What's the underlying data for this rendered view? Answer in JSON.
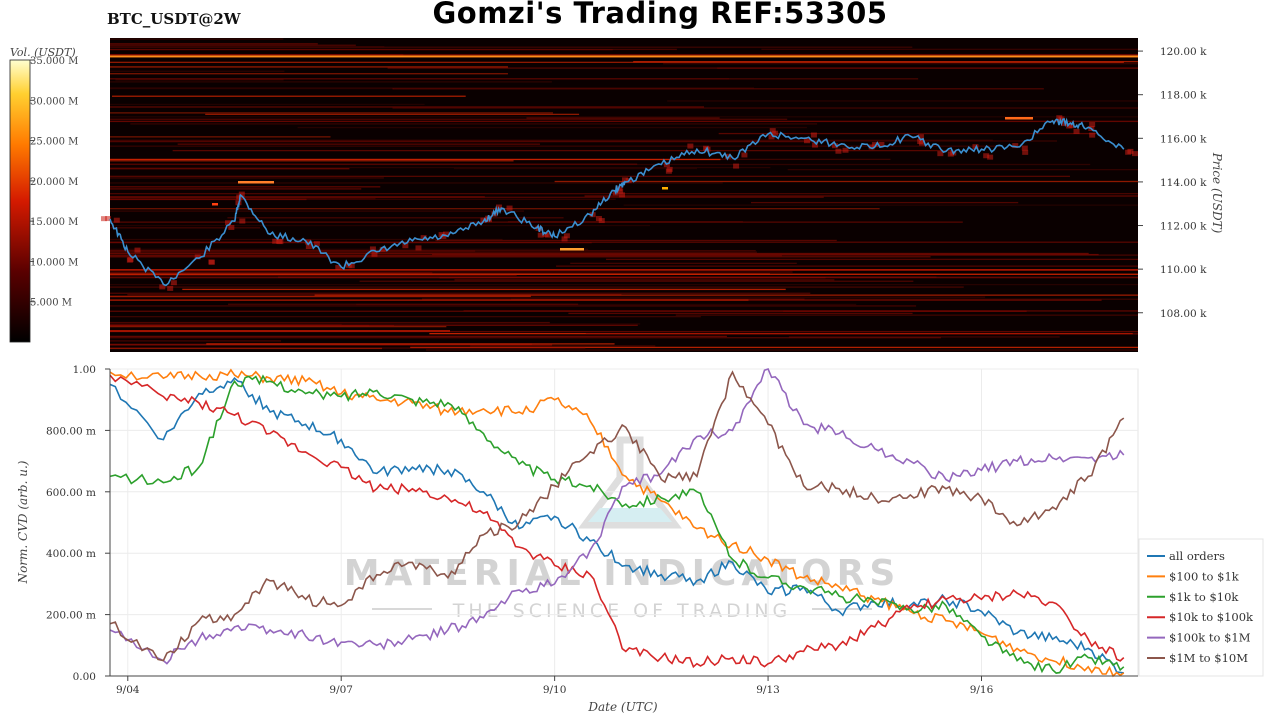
{
  "header": {
    "symbol": "BTC_USDT@2W",
    "title": "Gomzi's Trading REF:53305"
  },
  "watermark": {
    "line1": "MATERIAL INDICATORS",
    "line2": "THE SCIENCE OF TRADING"
  },
  "colors": {
    "heatmap_bg": "#0a0000",
    "price_line": "#3b8fd0",
    "all_orders": "#1f77b4",
    "r100_1k": "#ff7f0e",
    "r1k_10k": "#2ca02c",
    "r10k_100k": "#d62728",
    "r100k_1m": "#9467bd",
    "r1m_10m": "#8c564b"
  },
  "chart_data": [
    {
      "type": "heatmap",
      "title": "Gomzi's Trading REF:53305",
      "colorbar": {
        "label": "Vol. (USDT)",
        "ticks": [
          "5.000 M",
          "10.000 M",
          "15.000 M",
          "20.000 M",
          "25.000 M",
          "30.000 M",
          "35.000 M"
        ],
        "range": [
          0,
          35
        ]
      },
      "ylabel": "Price (USDT)",
      "y_ticks": [
        "108.00 k",
        "110.00 k",
        "112.00 k",
        "114.00 k",
        "116.00 k",
        "118.00 k",
        "120.00 k"
      ],
      "ylim": [
        106.2,
        120.6
      ],
      "x_range_days": [
        "9/03 18:00",
        "9/18 06:00"
      ],
      "price_line": {
        "name": "Price",
        "x": [
          "9/03",
          "9/04",
          "9/04 12:00",
          "9/05",
          "9/05 12:00",
          "9/05 14:00",
          "9/06",
          "9/06 12:00",
          "9/07",
          "9/07 12:00",
          "9/08",
          "9/08 12:00",
          "9/09",
          "9/09 06:00",
          "9/09 18:00",
          "9/10",
          "9/10 12:00",
          "9/10 20:00",
          "9/11",
          "9/11 12:00",
          "9/12",
          "9/12 12:00",
          "9/13",
          "9/13 12:00",
          "9/14",
          "9/14 12:00",
          "9/15",
          "9/15 12:00",
          "9/16",
          "9/16 12:00",
          "9/17",
          "9/17 06:00",
          "9/17 12:00",
          "9/18"
        ],
        "y": [
          112.3,
          110.8,
          109.3,
          110.5,
          112.2,
          113.4,
          111.6,
          111.3,
          110.1,
          110.8,
          111.3,
          111.5,
          112.2,
          112.8,
          111.9,
          111.5,
          112.5,
          113.6,
          114.0,
          114.8,
          115.5,
          115.1,
          116.2,
          116.0,
          115.7,
          115.6,
          116.1,
          115.4,
          115.5,
          115.6,
          116.8,
          116.7,
          116.5,
          115.5
        ]
      }
    },
    {
      "type": "line",
      "xlabel": "Date (UTC)",
      "ylabel": "Norm. CVD (arb. u.)",
      "ylim": [
        0,
        1
      ],
      "y_ticks": [
        "0.00",
        "200.00 m",
        "400.00 m",
        "600.00 m",
        "800.00 m",
        "1.00"
      ],
      "x_ticks": [
        "9/04",
        "9/07",
        "9/10",
        "9/13",
        "9/16"
      ],
      "x": [
        "9/03 18:00",
        "9/04 12:00",
        "9/05",
        "9/05 12:00",
        "9/06",
        "9/06 12:00",
        "9/07",
        "9/07 12:00",
        "9/08",
        "9/08 12:00",
        "9/09",
        "9/09 12:00",
        "9/10",
        "9/10 12:00",
        "9/11",
        "9/11 12:00",
        "9/12",
        "9/12 12:00",
        "9/13",
        "9/13 12:00",
        "9/14",
        "9/14 12:00",
        "9/15",
        "9/15 12:00",
        "9/16",
        "9/16 12:00",
        "9/17",
        "9/17 12:00",
        "9/18"
      ],
      "legend": "right",
      "series": [
        {
          "name": "all orders",
          "values": [
            0.95,
            0.77,
            0.92,
            0.97,
            0.86,
            0.82,
            0.77,
            0.66,
            0.68,
            0.67,
            0.6,
            0.48,
            0.52,
            0.44,
            0.36,
            0.33,
            0.31,
            0.37,
            0.27,
            0.29,
            0.21,
            0.24,
            0.23,
            0.25,
            0.21,
            0.14,
            0.12,
            0.09,
            0.01
          ]
        },
        {
          "name": "$100 to $1k",
          "values": [
            0.99,
            0.97,
            0.98,
            0.98,
            0.97,
            0.96,
            0.92,
            0.9,
            0.89,
            0.86,
            0.87,
            0.86,
            0.9,
            0.83,
            0.65,
            0.57,
            0.48,
            0.43,
            0.38,
            0.32,
            0.29,
            0.25,
            0.21,
            0.18,
            0.14,
            0.09,
            0.05,
            0.03,
            0.01
          ]
        },
        {
          "name": "$1k to $10k",
          "values": [
            0.65,
            0.63,
            0.68,
            0.96,
            0.96,
            0.92,
            0.91,
            0.93,
            0.9,
            0.89,
            0.79,
            0.69,
            0.64,
            0.62,
            0.56,
            0.58,
            0.6,
            0.38,
            0.32,
            0.29,
            0.26,
            0.24,
            0.22,
            0.23,
            0.13,
            0.05,
            0.02,
            0.06,
            0.03
          ]
        },
        {
          "name": "$10k to $100k",
          "values": [
            0.98,
            0.91,
            0.89,
            0.85,
            0.79,
            0.73,
            0.68,
            0.61,
            0.61,
            0.58,
            0.53,
            0.42,
            0.36,
            0.33,
            0.08,
            0.06,
            0.04,
            0.06,
            0.04,
            0.08,
            0.1,
            0.16,
            0.22,
            0.25,
            0.25,
            0.27,
            0.24,
            0.12,
            0.06
          ]
        },
        {
          "name": "$100k to $1M",
          "values": [
            0.15,
            0.05,
            0.12,
            0.16,
            0.15,
            0.13,
            0.11,
            0.1,
            0.12,
            0.15,
            0.19,
            0.28,
            0.3,
            0.41,
            0.62,
            0.66,
            0.78,
            0.8,
            1.0,
            0.82,
            0.79,
            0.74,
            0.7,
            0.64,
            0.67,
            0.7,
            0.71,
            0.71,
            0.72
          ]
        },
        {
          "name": "$1M to $10M",
          "values": [
            0.17,
            0.05,
            0.18,
            0.2,
            0.31,
            0.25,
            0.23,
            0.33,
            0.37,
            0.32,
            0.46,
            0.5,
            0.62,
            0.73,
            0.81,
            0.64,
            0.65,
            0.99,
            0.82,
            0.62,
            0.61,
            0.58,
            0.59,
            0.61,
            0.58,
            0.49,
            0.55,
            0.65,
            0.84
          ]
        }
      ]
    }
  ]
}
